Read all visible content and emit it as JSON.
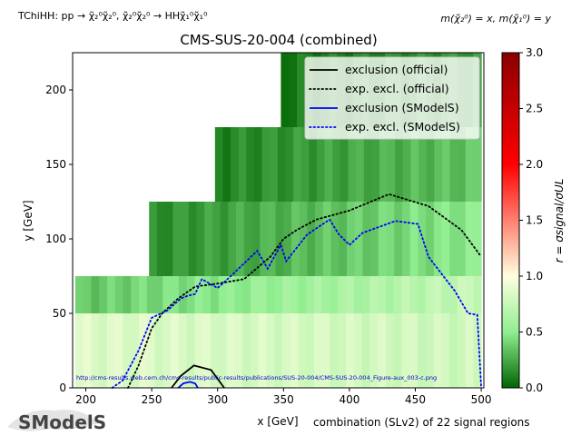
{
  "header": {
    "topology": "TChiHH: pp → χ̃₂⁰χ̃₂⁰, χ̃₂⁰χ̃₂⁰ → HHχ̃₁⁰χ̃₁⁰",
    "mass_def": "m(χ̃₂⁰) = x, m(χ̃₁⁰) = y"
  },
  "footer": {
    "combination": "combination (SLv2) of 22 signal regions",
    "url": "http://cms-results.web.cern.ch/cms-results/public-results/publications/SUS-20-004/CMS-SUS-20-004_Figure-aux_003-c.png",
    "logo_text": "SModelS"
  },
  "colors": {
    "official": "#000000",
    "smodels": "#0000ff",
    "url_text": "#0000cc"
  },
  "chart_data": {
    "type": "heatmap",
    "title": "CMS-SUS-20-004 (combined)",
    "xlabel": "x [GeV]",
    "ylabel": "y [GeV]",
    "xlim": [
      190,
      502
    ],
    "ylim": [
      0,
      225
    ],
    "xticks": [
      200,
      250,
      300,
      350,
      400,
      450,
      500
    ],
    "yticks": [
      0,
      50,
      100,
      150,
      200
    ],
    "colorbar": {
      "label": "r = σsignal/σUL",
      "range": [
        0,
        3
      ],
      "ticks": [
        0.0,
        0.5,
        1.0,
        1.5,
        2.0,
        2.5,
        3.0
      ],
      "colormap": [
        "#006400",
        "#90ee90",
        "#ffffe0",
        "#ff0000",
        "#8b0000"
      ]
    },
    "cells": [
      {
        "x0": 192,
        "x1": 500,
        "y0": 0,
        "y1": 50,
        "r_low": 0.85,
        "r_high": 0.78
      },
      {
        "x0": 192,
        "x1": 500,
        "y0": 50,
        "y1": 75,
        "r_low": 0.35,
        "r_high": 0.75
      },
      {
        "x0": 248,
        "x1": 500,
        "y0": 75,
        "y1": 125,
        "r_low": 0.15,
        "r_high": 0.5
      },
      {
        "x0": 298,
        "x1": 500,
        "y0": 125,
        "y1": 175,
        "r_low": 0.12,
        "r_high": 0.35
      },
      {
        "x0": 348,
        "x1": 500,
        "y0": 175,
        "y1": 225,
        "r_low": 0.08,
        "r_high": 0.2
      }
    ],
    "legend": {
      "placement": "top-right"
    },
    "series": [
      {
        "name": "exclusion (official)",
        "style": "solid",
        "x": [
          265,
          272,
          282,
          295,
          305
        ],
        "y": [
          0,
          8,
          15,
          12,
          0
        ]
      },
      {
        "name": "exp. excl. (official)",
        "style": "dotted",
        "x": [
          232,
          240,
          250,
          258,
          270,
          283,
          300,
          320,
          340,
          350,
          360,
          375,
          400,
          430,
          460,
          485,
          500
        ],
        "y": [
          0,
          15,
          40,
          50,
          60,
          68,
          70,
          73,
          88,
          100,
          106,
          113,
          119,
          130,
          122,
          106,
          88
        ]
      },
      {
        "name": "exclusion (SModelS)",
        "style": "solid",
        "x": [
          270,
          274,
          279,
          283,
          285
        ],
        "y": [
          0,
          3,
          4,
          3,
          0
        ]
      },
      {
        "name": "exp. excl. (SModelS)",
        "style": "dotted",
        "x": [
          220,
          228,
          240,
          250,
          262,
          272,
          278,
          283,
          288,
          300,
          310,
          330,
          338,
          348,
          352,
          368,
          385,
          392,
          400,
          410,
          435,
          452,
          460,
          480,
          490,
          497,
          500
        ],
        "y": [
          0,
          5,
          25,
          47,
          52,
          60,
          62,
          63,
          73,
          67,
          75,
          92,
          80,
          96,
          85,
          103,
          113,
          103,
          96,
          104,
          112,
          110,
          88,
          65,
          50,
          49,
          0
        ]
      }
    ]
  }
}
